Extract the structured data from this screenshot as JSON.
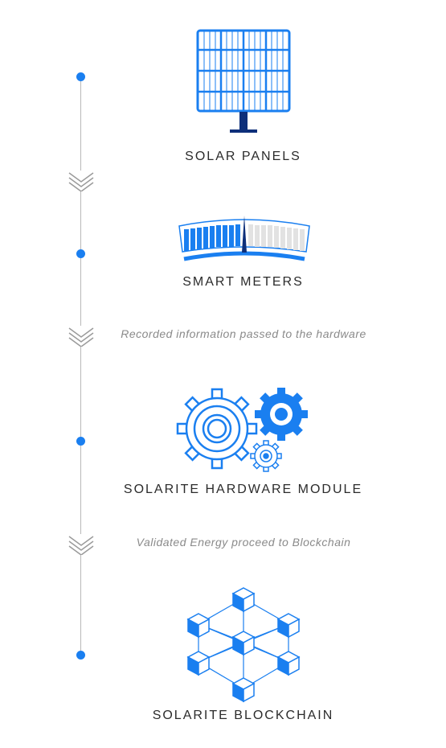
{
  "stages": [
    {
      "label": "SOLAR PANELS",
      "icon": "solar-panel-icon"
    },
    {
      "label": "SMART METERS",
      "icon": "smart-meter-icon"
    },
    {
      "label": "SOLARITE HARDWARE MODULE",
      "icon": "gears-icon"
    },
    {
      "label": "SOLARITE BLOCKCHAIN",
      "icon": "blockchain-icon"
    }
  ],
  "captions": [
    "Recorded information passed to the hardware",
    "Validated Energy proceed to Blockchain"
  ],
  "colors": {
    "accent": "#1a7ff0",
    "dark_accent": "#0d2f7a",
    "line": "#b9b9b9",
    "label": "#2b2b2b",
    "caption": "#8a8a8a"
  }
}
